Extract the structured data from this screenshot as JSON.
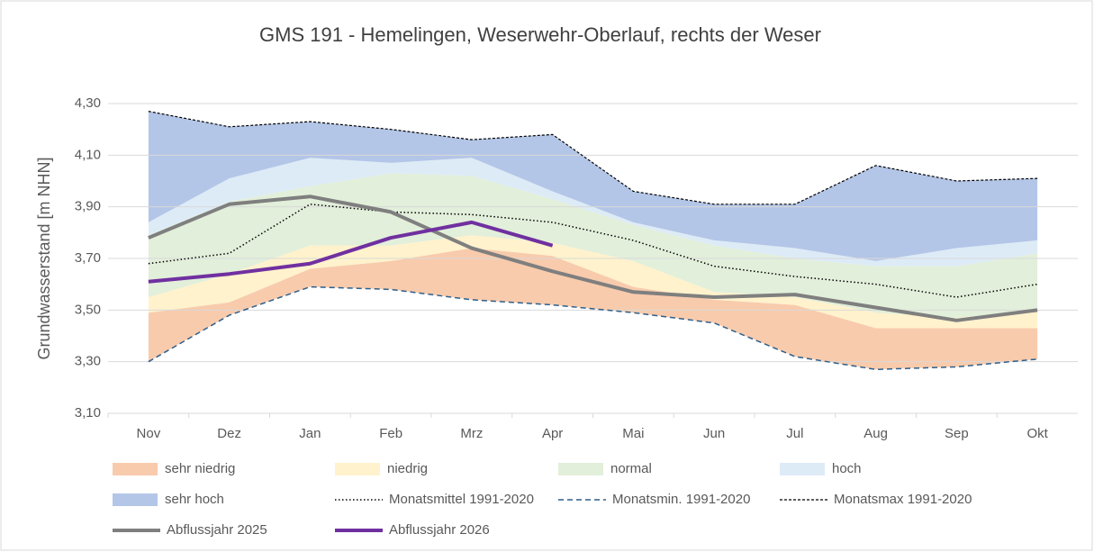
{
  "chart_data": {
    "type": "stacked-band-line",
    "title": "GMS 191 - Hemelingen, Weserwehr-Oberlauf,  rechts der Weser",
    "y_label": "Grundwasserstand [m NHN]",
    "categories": [
      "Nov",
      "Dez",
      "Jan",
      "Feb",
      "Mrz",
      "Apr",
      "Mai",
      "Jun",
      "Jul",
      "Aug",
      "Sep",
      "Okt"
    ],
    "ylim": [
      3.1,
      4.3
    ],
    "yticks": [
      {
        "value": 3.1,
        "label": "3,10"
      },
      {
        "value": 3.3,
        "label": "3,30"
      },
      {
        "value": 3.5,
        "label": "3,50"
      },
      {
        "value": 3.7,
        "label": "3,70"
      },
      {
        "value": 3.9,
        "label": "3,90"
      },
      {
        "value": 4.1,
        "label": "4,10"
      },
      {
        "value": 4.3,
        "label": "4,30"
      }
    ],
    "grid": true,
    "bands": [
      {
        "name": "sehr niedrig",
        "color": "#f8cbad",
        "values": [
          0.19,
          0.05,
          0.07,
          0.11,
          0.2,
          0.19,
          0.1,
          0.09,
          0.2,
          0.16,
          0.15,
          0.12
        ]
      },
      {
        "name": "niedrig",
        "color": "#fff2cc",
        "values": [
          0.06,
          0.11,
          0.09,
          0.06,
          0.05,
          0.05,
          0.1,
          0.03,
          0.03,
          0.06,
          0.04,
          0.07
        ]
      },
      {
        "name": "normal",
        "color": "#e2efda",
        "values": [
          0.24,
          0.28,
          0.23,
          0.28,
          0.23,
          0.17,
          0.14,
          0.18,
          0.15,
          0.18,
          0.2,
          0.22
        ]
      },
      {
        "name": "hoch",
        "color": "#ddebf7",
        "values": [
          0.05,
          0.09,
          0.11,
          0.04,
          0.07,
          0.03,
          0.01,
          0.02,
          0.04,
          0.02,
          0.07,
          0.05
        ]
      },
      {
        "name": "sehr hoch",
        "color": "#b4c6e7",
        "values": [
          0.43,
          0.2,
          0.14,
          0.13,
          0.07,
          0.22,
          0.12,
          0.14,
          0.17,
          0.37,
          0.26,
          0.24
        ]
      }
    ],
    "lines": [
      {
        "name": "Monatsmittel 1991-2020",
        "color": "#000000",
        "dash": "dotted",
        "width": 1.5,
        "values": [
          3.68,
          3.72,
          3.91,
          3.88,
          3.87,
          3.84,
          3.77,
          3.67,
          3.63,
          3.6,
          3.55,
          3.6
        ]
      },
      {
        "name": "Monatsmin. 1991-2020",
        "color": "#2e5f8a",
        "dash": "dashed",
        "width": 1.5,
        "values": [
          3.3,
          3.48,
          3.59,
          3.58,
          3.54,
          3.52,
          3.49,
          3.45,
          3.32,
          3.27,
          3.28,
          3.31
        ]
      },
      {
        "name": "Monatsmax 1991-2020",
        "color": "#000000",
        "dash": "short-dashed",
        "width": 1.2,
        "values": [
          4.27,
          4.21,
          4.23,
          4.2,
          4.16,
          4.18,
          3.96,
          3.91,
          3.91,
          4.06,
          4.0,
          4.01
        ]
      },
      {
        "name": "Abflussjahr 2025",
        "color": "#7f7f7f",
        "dash": "solid",
        "width": 4,
        "values": [
          3.78,
          3.91,
          3.94,
          3.88,
          3.74,
          3.65,
          3.57,
          3.55,
          3.56,
          3.51,
          3.46,
          3.5
        ]
      },
      {
        "name": "Abflussjahr 2026",
        "color": "#7030a0",
        "dash": "solid",
        "width": 4,
        "values": [
          3.61,
          3.64,
          3.68,
          3.78,
          3.84,
          3.75,
          null,
          null,
          null,
          null,
          null,
          null
        ]
      }
    ]
  }
}
